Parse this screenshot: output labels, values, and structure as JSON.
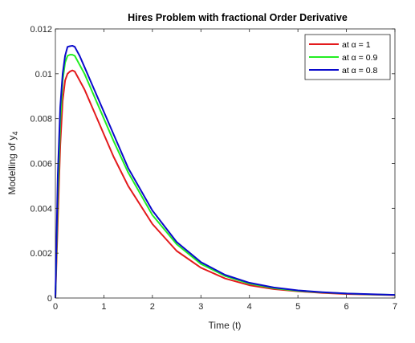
{
  "chart_data": {
    "type": "line",
    "title": "Hires Problem with fractional Order Derivative",
    "xlabel": "Time (t)",
    "ylabel": "Modelling of y",
    "ylabel_subscript": "4",
    "xlim": [
      0,
      7
    ],
    "ylim": [
      0,
      0.012
    ],
    "x_ticks": [
      "0",
      "1",
      "2",
      "3",
      "4",
      "5",
      "6",
      "7"
    ],
    "y_ticks": [
      "0",
      "0.002",
      "0.004",
      "0.006",
      "0.008",
      "0.01",
      "0.012"
    ],
    "grid": false,
    "legend_position": "top-right",
    "series": [
      {
        "name": "at α = 1",
        "color": "#e31a1c",
        "x": [
          0,
          0.05,
          0.1,
          0.15,
          0.2,
          0.25,
          0.3,
          0.35,
          0.4,
          0.45,
          0.5,
          0.6,
          0.7,
          0.8,
          1.0,
          1.2,
          1.5,
          2.0,
          2.5,
          3.0,
          3.5,
          4.0,
          4.5,
          5.0,
          5.5,
          6.0,
          6.5,
          7.0
        ],
        "y": [
          0,
          0.0035,
          0.0068,
          0.0088,
          0.0097,
          0.01,
          0.0101,
          0.01015,
          0.0101,
          0.0099,
          0.0097,
          0.0093,
          0.0088,
          0.0083,
          0.0073,
          0.0063,
          0.005,
          0.0033,
          0.0021,
          0.00135,
          0.00087,
          0.00057,
          0.0004,
          0.0003,
          0.00023,
          0.00018,
          0.00015,
          0.00013
        ]
      },
      {
        "name": "at α = 0.9",
        "color": "#22ee22",
        "x": [
          0,
          0.05,
          0.1,
          0.15,
          0.2,
          0.25,
          0.3,
          0.35,
          0.4,
          0.45,
          0.5,
          0.6,
          0.7,
          0.8,
          1.0,
          1.2,
          1.5,
          2.0,
          2.5,
          3.0,
          3.5,
          4.0,
          4.5,
          5.0,
          5.5,
          6.0,
          6.5,
          7.0
        ],
        "y": [
          0,
          0.0045,
          0.0078,
          0.0097,
          0.0105,
          0.0108,
          0.01085,
          0.01085,
          0.0108,
          0.0106,
          0.0104,
          0.01,
          0.0095,
          0.009,
          0.008,
          0.007,
          0.0056,
          0.0037,
          0.0024,
          0.00152,
          0.00098,
          0.00064,
          0.00044,
          0.00032,
          0.00025,
          0.0002,
          0.00016,
          0.00014
        ]
      },
      {
        "name": "at α = 0.8",
        "color": "#0a0acc",
        "x": [
          0,
          0.05,
          0.1,
          0.15,
          0.2,
          0.25,
          0.3,
          0.35,
          0.4,
          0.45,
          0.5,
          0.6,
          0.7,
          0.8,
          1.0,
          1.2,
          1.5,
          2.0,
          2.5,
          3.0,
          3.5,
          4.0,
          4.5,
          5.0,
          5.5,
          6.0,
          6.5,
          7.0
        ],
        "y": [
          0,
          0.0055,
          0.0085,
          0.01,
          0.0108,
          0.0112,
          0.01123,
          0.01125,
          0.0112,
          0.011,
          0.0108,
          0.0103,
          0.0098,
          0.0093,
          0.0083,
          0.0073,
          0.0058,
          0.0039,
          0.0025,
          0.0016,
          0.00103,
          0.00068,
          0.00047,
          0.00034,
          0.00026,
          0.0002,
          0.00017,
          0.00014
        ]
      }
    ]
  }
}
